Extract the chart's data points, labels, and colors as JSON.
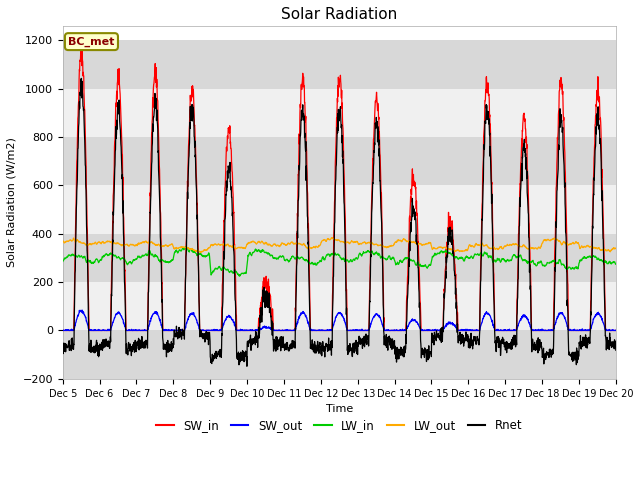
{
  "title": "Solar Radiation",
  "ylabel": "Solar Radiation (W/m2)",
  "xlabel": "Time",
  "station_label": "BC_met",
  "ylim": [
    -200,
    1260
  ],
  "yticks": [
    -200,
    0,
    200,
    400,
    600,
    800,
    1000,
    1200
  ],
  "x_tick_labels": [
    "Dec 5",
    "Dec 6",
    "Dec 7",
    "Dec 8",
    "Dec 9",
    "Dec 10",
    "Dec 11",
    "Dec 12",
    "Dec 13",
    "Dec 14",
    "Dec 15",
    "Dec 16",
    "Dec 17",
    "Dec 18",
    "Dec 19",
    "Dec 20"
  ],
  "colors": {
    "SW_in": "#ff0000",
    "SW_out": "#0000ff",
    "LW_in": "#00cc00",
    "LW_out": "#ffaa00",
    "Rnet": "#000000"
  },
  "legend_labels": [
    "SW_in",
    "SW_out",
    "LW_in",
    "LW_out",
    "Rnet"
  ],
  "fig_bg_color": "#ffffff",
  "plot_bg_color": "#ffffff",
  "band_colors": [
    "#d8d8d8",
    "#f0f0f0"
  ],
  "n_days": 15,
  "points_per_day": 144,
  "sw_in_peaks": [
    1150,
    1045,
    1060,
    1000,
    840,
    200,
    1035,
    1050,
    960,
    630,
    460,
    1035,
    870,
    1030,
    990
  ]
}
